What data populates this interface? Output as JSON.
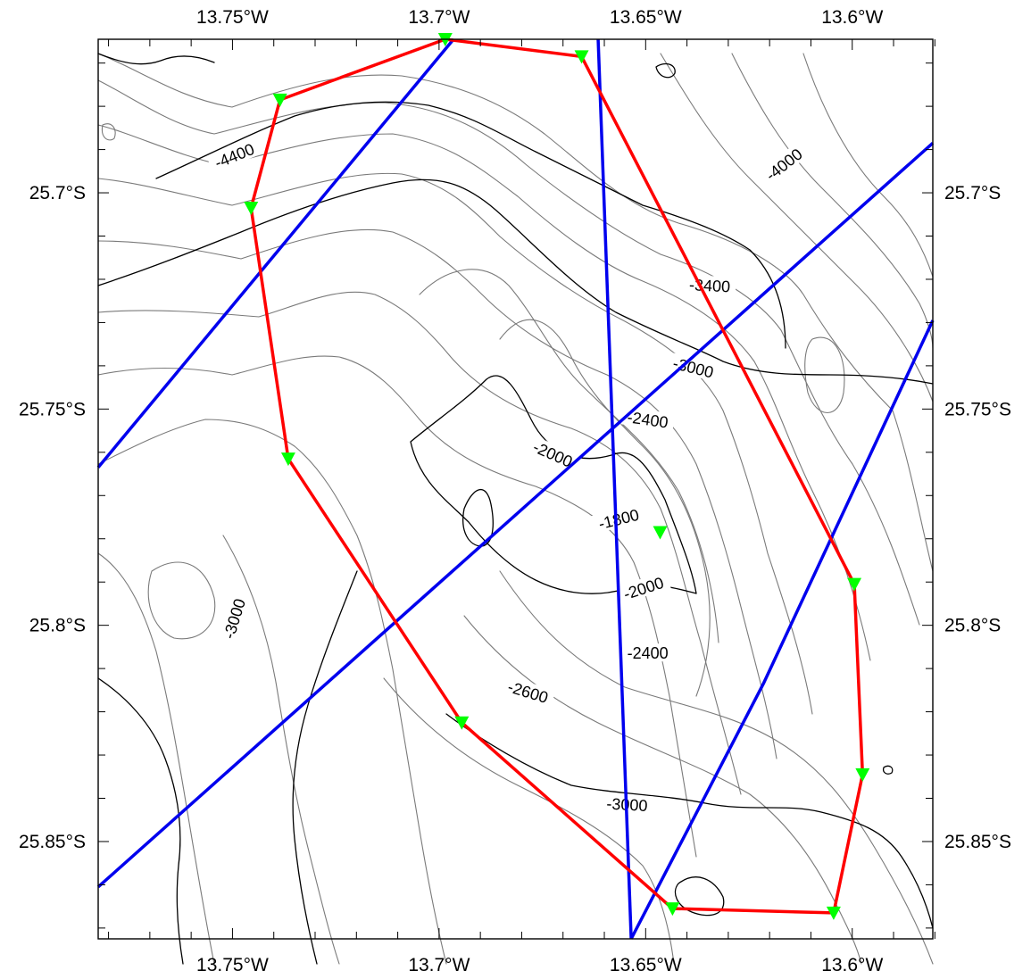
{
  "map": {
    "lon_range": [
      -13.7825,
      -13.5805
    ],
    "lat_range": [
      -25.8725,
      -25.6645
    ],
    "lon_ticks": [
      {
        "value": -13.75,
        "label": "13.75°W"
      },
      {
        "value": -13.7,
        "label": "13.7°W"
      },
      {
        "value": -13.65,
        "label": "13.65°W"
      },
      {
        "value": -13.6,
        "label": "13.6°W"
      }
    ],
    "lat_ticks": [
      {
        "value": -25.7,
        "label": "25.7°S"
      },
      {
        "value": -25.75,
        "label": "25.75°S"
      },
      {
        "value": -25.8,
        "label": "25.8°S"
      },
      {
        "value": -25.85,
        "label": "25.85°S"
      }
    ],
    "contour_labels": [
      {
        "text": "-4400",
        "lon": -13.7495,
        "lat": -25.6915,
        "angle": -22
      },
      {
        "text": "-4000",
        "lon": -13.6165,
        "lat": -25.6935,
        "angle": -38
      },
      {
        "text": "-3400",
        "lon": -13.6345,
        "lat": -25.7215,
        "angle": 3
      },
      {
        "text": "-3000",
        "lon": -13.6385,
        "lat": -25.7405,
        "angle": 14
      },
      {
        "text": "-2400",
        "lon": -13.6495,
        "lat": -25.7525,
        "angle": 8
      },
      {
        "text": "-2000",
        "lon": -13.6725,
        "lat": -25.7605,
        "angle": 24
      },
      {
        "text": "-1800",
        "lon": -13.6565,
        "lat": -25.7755,
        "angle": -14
      },
      {
        "text": "-2000",
        "lon": -13.6505,
        "lat": -25.7915,
        "angle": -18
      },
      {
        "text": "-2400",
        "lon": -13.6495,
        "lat": -25.8065,
        "angle": 0
      },
      {
        "text": "-2600",
        "lon": -13.6785,
        "lat": -25.8155,
        "angle": 17
      },
      {
        "text": "-3000",
        "lon": -13.7495,
        "lat": -25.7985,
        "angle": -73
      },
      {
        "text": "-3000",
        "lon": -13.6545,
        "lat": -25.8415,
        "angle": 3
      }
    ],
    "red_track": [
      [
        -13.7385,
        -25.6785
      ],
      [
        -13.6985,
        -25.6645
      ],
      [
        -13.6655,
        -25.6685
      ],
      [
        -13.5995,
        -25.7905
      ],
      [
        -13.5975,
        -25.8345
      ],
      [
        -13.6045,
        -25.8665
      ],
      [
        -13.6435,
        -25.8655
      ],
      [
        -13.6945,
        -25.8225
      ],
      [
        -13.7365,
        -25.7615
      ],
      [
        -13.7455,
        -25.7035
      ],
      [
        -13.7385,
        -25.6785
      ]
    ],
    "stations": [
      [
        -13.6985,
        -25.6645
      ],
      [
        -13.6655,
        -25.6685
      ],
      [
        -13.7385,
        -25.6785
      ],
      [
        -13.7455,
        -25.7035
      ],
      [
        -13.7365,
        -25.7615
      ],
      [
        -13.6465,
        -25.7785
      ],
      [
        -13.5995,
        -25.7905
      ],
      [
        -13.5975,
        -25.8345
      ],
      [
        -13.6945,
        -25.8225
      ],
      [
        -13.6435,
        -25.8655
      ],
      [
        -13.6045,
        -25.8665
      ]
    ],
    "blue_profiles": [
      [
        [
          -13.7825,
          -25.7635
        ],
        [
          -13.6965,
          -25.6645
        ]
      ],
      [
        [
          -13.6615,
          -25.6645
        ],
        [
          -13.6535,
          -25.8725
        ]
      ],
      [
        [
          -13.7825,
          -25.8605
        ],
        [
          -13.5805,
          -25.6885
        ]
      ],
      [
        [
          -13.6535,
          -25.8725
        ],
        [
          -13.6215,
          -25.8135
        ],
        [
          -13.5805,
          -25.7295
        ]
      ]
    ],
    "colors": {
      "track": "#ff0000",
      "profiles": "#0000ee",
      "stations": "#00ff00",
      "contour_major": "#000000",
      "contour_minor": "#7a7a7a"
    }
  }
}
